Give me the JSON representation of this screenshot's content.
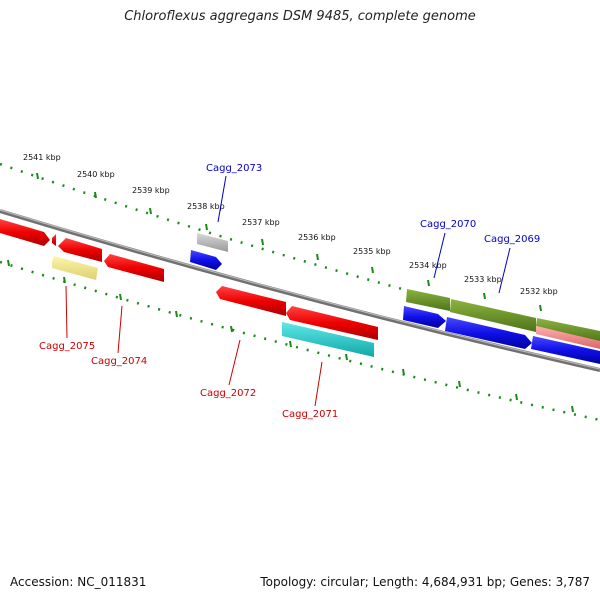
{
  "title": "Chloroflexus aggregans DSM 9485, complete genome",
  "footer": {
    "accession": "Accession: NC_011831",
    "topology": "Topology: circular; Length: 4,684,931 bp; Genes: 3,787"
  },
  "ticks": [
    "2541 kbp",
    "2540 kbp",
    "2539 kbp",
    "2538 kbp",
    "2537 kbp",
    "2536 kbp",
    "2535 kbp",
    "2534 kbp",
    "2533 kbp",
    "2532 kbp"
  ],
  "genes": {
    "forward": [
      "Cagg_2073",
      "Cagg_2070",
      "Cagg_2069"
    ],
    "reverse": [
      "Cagg_2075",
      "Cagg_2074",
      "Cagg_2072",
      "Cagg_2071"
    ]
  },
  "colors": {
    "backbone": "#808080",
    "dotted_track": "#1a8a1a",
    "red": "#ee1111",
    "blue": "#1010e0",
    "gray": "#b0b0b0",
    "yellow": "#eee488",
    "cyan": "#20c8c8",
    "olive": "#6e9a28",
    "pink": "#ee8888",
    "forward_label": "#0000cc",
    "reverse_label": "#cc0000"
  }
}
